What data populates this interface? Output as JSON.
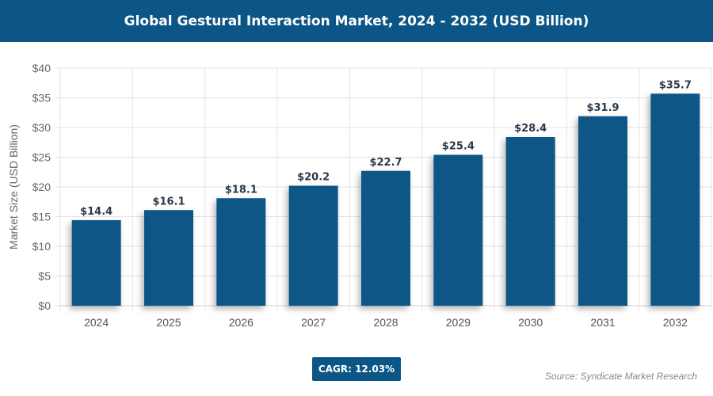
{
  "chart_data": {
    "type": "bar",
    "title": "Global Gestural Interaction Market, 2024 - 2032 (USD Billion)",
    "xlabel": "",
    "ylabel": "Market Size (USD Billion)",
    "categories": [
      "2024",
      "2025",
      "2026",
      "2027",
      "2028",
      "2029",
      "2030",
      "2031",
      "2032"
    ],
    "values": [
      14.4,
      16.1,
      18.1,
      20.2,
      22.7,
      25.4,
      28.4,
      31.9,
      35.7
    ],
    "data_labels": [
      "$14.4",
      "$16.1",
      "$18.1",
      "$20.2",
      "$22.7",
      "$25.4",
      "$28.4",
      "$31.9",
      "$35.7"
    ],
    "ylim": [
      0,
      40
    ],
    "yticks": [
      0,
      5,
      10,
      15,
      20,
      25,
      30,
      35,
      40
    ],
    "ytick_labels": [
      "$0",
      "$5",
      "$10",
      "$15",
      "$20",
      "$25",
      "$30",
      "$35",
      "$40"
    ],
    "grid": true,
    "bar_color": "#0b5686"
  },
  "cagr_label": "CAGR: 12.03%",
  "source": "Source: Syndicate Market Research"
}
